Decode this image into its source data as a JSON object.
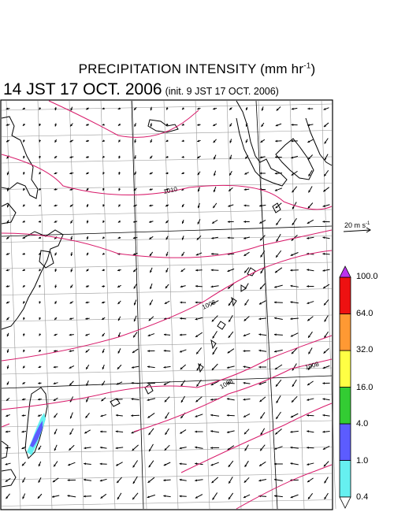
{
  "title": "PRECIPITATION INTENSITY (mm hr",
  "title_exponent": "-1",
  "title_close": ")",
  "valid_time": "14 JST 17 OCT. 2006",
  "init_time": "(init. 9 JST 17 OCT. 2006)",
  "wind_scale": {
    "value": "20",
    "unit": "m s",
    "unit_exponent": "-1"
  },
  "colorbar": {
    "colors": [
      "#66f0f0",
      "#5c5cff",
      "#33cc33",
      "#ffff44",
      "#ff9933",
      "#ee1111"
    ],
    "over_color": "#bb33ee",
    "under_color": "#ffffff",
    "labels": [
      "0.4",
      "1.0",
      "4.0",
      "16.0",
      "32.0",
      "64.0",
      "100.0"
    ]
  },
  "isobar_labels": [
    "1010",
    "1008",
    "1008",
    "1008"
  ],
  "line_colors": {
    "isobar": "#d81a6a",
    "coast": "#000000",
    "grid": "#999999"
  }
}
